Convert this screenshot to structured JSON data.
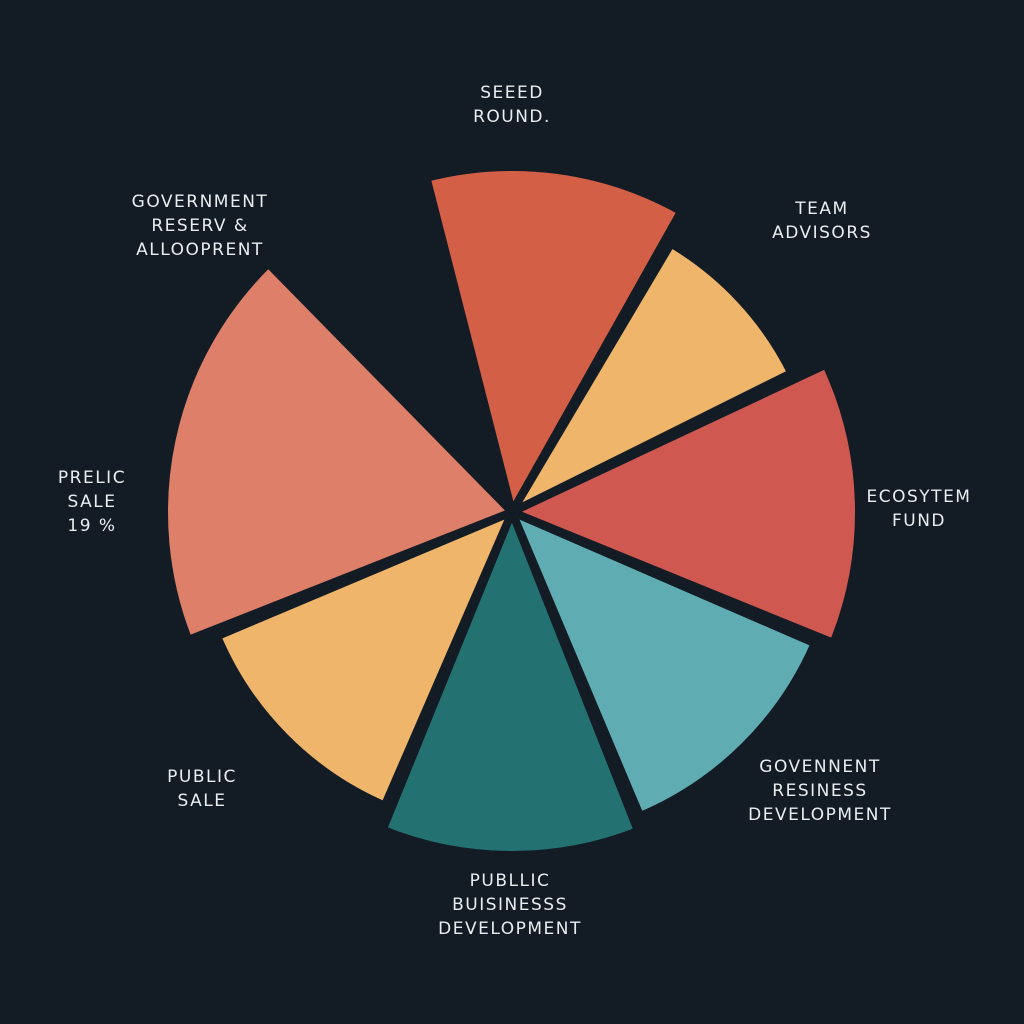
{
  "chart_data": {
    "type": "pie",
    "title": "",
    "background": "#131c25",
    "label_color": "#e9edf0",
    "slices": [
      {
        "label_lines": [
          "SEEED",
          "ROUND."
        ],
        "value": 12.5,
        "color": "#d35f46"
      },
      {
        "label_lines": [
          "TEAM",
          "ADVISORS"
        ],
        "value": 9.5,
        "color": "#efb56a"
      },
      {
        "label_lines": [
          "ECOSYTEM",
          "FUND"
        ],
        "value": 13.5,
        "color": "#cf5851"
      },
      {
        "label_lines": [
          "GOVENNENT",
          "RESINESS",
          "DEVELOPMENT"
        ],
        "value": 12.5,
        "color": "#5fadb2"
      },
      {
        "label_lines": [
          "PUBLLIC",
          "BUISINESSS",
          "DEVELOPMENT"
        ],
        "value": 12.5,
        "color": "#237170"
      },
      {
        "label_lines": [
          "PUBLIC",
          "SALE"
        ],
        "value": 12.5,
        "color": "#efb56a"
      },
      {
        "label_lines": [
          "PRELIC",
          "SALE",
          "19 %"
        ],
        "value": 19,
        "color": "#dd7f69"
      },
      {
        "label_lines": [
          "GOVERNMENT",
          "RESERV &",
          "ALLOOPRENT"
        ],
        "value": 8,
        "color": "#131c25"
      }
    ]
  }
}
